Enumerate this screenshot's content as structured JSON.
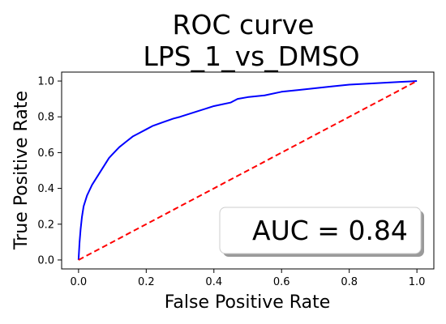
{
  "chart_data": {
    "type": "line",
    "title": "ROC curve\nLPS_1_vs_DMSO",
    "title_lines": [
      "ROC curve",
      "LPS_1_vs_DMSO"
    ],
    "xlabel": "False Positive Rate",
    "ylabel": "True Positive Rate",
    "xlim": [
      -0.05,
      1.05
    ],
    "ylim": [
      -0.05,
      1.05
    ],
    "xticks": [
      0.0,
      0.2,
      0.4,
      0.6,
      0.8,
      1.0
    ],
    "yticks": [
      0.0,
      0.2,
      0.4,
      0.6,
      0.8,
      1.0
    ],
    "xtick_labels": [
      "0.0",
      "0.2",
      "0.4",
      "0.6",
      "0.8",
      "1.0"
    ],
    "ytick_labels": [
      "0.0",
      "0.2",
      "0.4",
      "0.6",
      "0.8",
      "1.0"
    ],
    "grid": false,
    "legend_placement": "bottom-right",
    "series": [
      {
        "color": "#0000ff",
        "style": "solid",
        "x": [
          0.0,
          0.003,
          0.006,
          0.01,
          0.015,
          0.02,
          0.025,
          0.03,
          0.04,
          0.05,
          0.06,
          0.07,
          0.08,
          0.09,
          0.1,
          0.12,
          0.14,
          0.16,
          0.18,
          0.2,
          0.22,
          0.25,
          0.28,
          0.3,
          0.35,
          0.4,
          0.45,
          0.47,
          0.5,
          0.55,
          0.6,
          0.65,
          0.7,
          0.75,
          0.8,
          0.85,
          0.9,
          0.95,
          1.0
        ],
        "y": [
          0.0,
          0.1,
          0.17,
          0.24,
          0.3,
          0.33,
          0.36,
          0.38,
          0.42,
          0.45,
          0.48,
          0.51,
          0.54,
          0.57,
          0.59,
          0.63,
          0.66,
          0.69,
          0.71,
          0.73,
          0.75,
          0.77,
          0.79,
          0.8,
          0.83,
          0.86,
          0.88,
          0.9,
          0.91,
          0.92,
          0.94,
          0.95,
          0.96,
          0.97,
          0.98,
          0.985,
          0.99,
          0.995,
          1.0
        ]
      },
      {
        "color": "#ff0000",
        "style": "dashed",
        "x": [
          0.0,
          1.0
        ],
        "y": [
          0.0,
          1.0
        ]
      }
    ],
    "annotation": "AUC = 0.84"
  }
}
